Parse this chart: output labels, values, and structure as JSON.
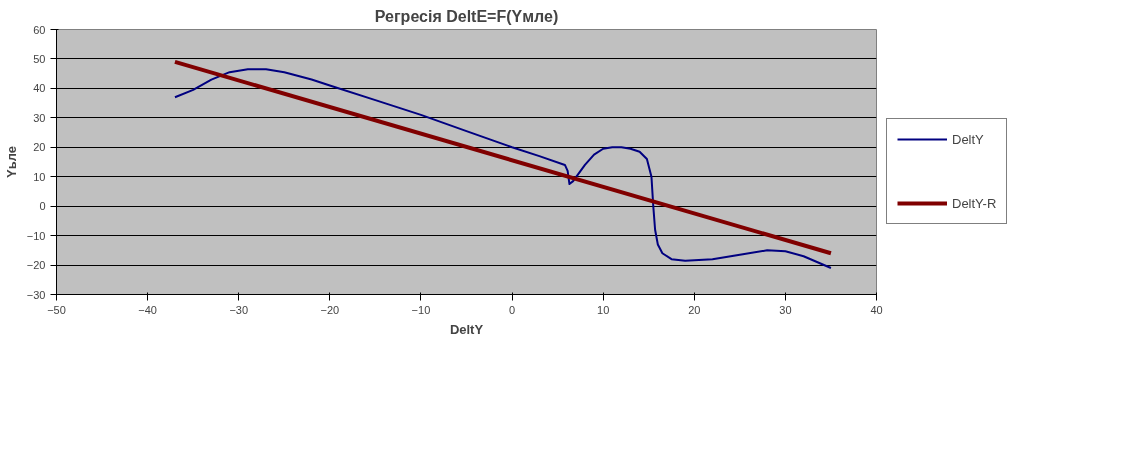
{
  "chart_data": {
    "type": "line",
    "title": "Регресія DeltE=F(Yмле)",
    "xlabel": "DeltY",
    "ylabel": "Yьле",
    "xlim": [
      -50,
      40
    ],
    "xticks": [
      -50,
      -40,
      -30,
      -20,
      -10,
      0,
      10,
      20,
      30,
      40
    ],
    "ylim": [
      -30,
      60
    ],
    "yticks": [
      -30,
      -20,
      -10,
      0,
      10,
      20,
      30,
      40,
      50,
      60
    ],
    "grid": "y",
    "legend": "right",
    "line_style": "solid",
    "marker": "none",
    "series": [
      {
        "name": "DeltY",
        "color": "#000080",
        "x": [
          -37,
          -35,
          -33,
          -31,
          -29,
          -27,
          -25,
          -22,
          -20,
          -15,
          -10,
          -5,
          0,
          3,
          5.8,
          6.1,
          6.3,
          6.7,
          8,
          9,
          10,
          11,
          12,
          13,
          14,
          14.8,
          15.3,
          15.5,
          15.7,
          16,
          16.5,
          17.5,
          19,
          22,
          25,
          28,
          30,
          32,
          35
        ],
        "values": [
          37,
          39.5,
          43,
          45.5,
          46.5,
          46.5,
          45.5,
          43,
          41,
          36,
          31,
          25.5,
          20,
          17,
          14,
          12,
          7.5,
          8.5,
          14,
          17.5,
          19.5,
          20,
          20,
          19.5,
          18.5,
          16,
          10,
          0,
          -8,
          -13,
          -16,
          -18,
          -18.5,
          -18,
          -16.5,
          -15,
          -15.3,
          -17,
          -21
        ]
      },
      {
        "color": "#ff00ff"
      },
      {
        "name": "DeltY-R",
        "color": "#800000",
        "x": [
          -37,
          35
        ],
        "values": [
          49,
          -16
        ]
      }
    ]
  }
}
